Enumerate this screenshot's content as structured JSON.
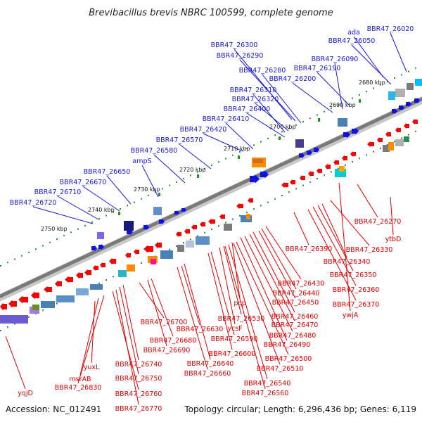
{
  "title": "Brevibacillus brevis NBRC 100599, complete genome",
  "footer": {
    "accession": "Accession: NC_012491",
    "summary": "Topology: circular; Length: 6,296,436 bp; Genes: 6,119"
  },
  "colors": {
    "top_label": "#1a1ad6",
    "bottom_label": "#e00000",
    "forward_gene": "#1010e0",
    "reverse_gene": "#ff0000",
    "backbone": "#7a7a7a",
    "tick": "#2e8b2e"
  },
  "ticks": [
    "2680 kbp",
    "2690 kbp",
    "2700 kbp",
    "2710 kbp",
    "2720 kbp",
    "2730 kbp",
    "2740 kbp",
    "2750 kbp"
  ],
  "top_labels": [
    "ada",
    "BBR47_26020",
    "BBR47_26050",
    "BBR47_26090",
    "BBR47_26300",
    "BBR47_26290",
    "BBR47_26280",
    "BBR47_26190",
    "BBR47_26200",
    "BBR47_26310",
    "BBR47_26320",
    "BBR47_26400",
    "BBR47_26410",
    "BBR47_26420",
    "BBR47_26570",
    "BBR47_26580",
    "ampS",
    "BBR47_26650",
    "BBR47_26670",
    "BBR47_26710",
    "BBR47_26720"
  ],
  "bottom_labels": [
    "BBR47_26270",
    "ytbD",
    "BBR47_26390",
    "BBR47_26330",
    "BBR47_26340",
    "BBR47_26350",
    "BBR47_26360",
    "BBR47_26370",
    "ywjA",
    "BBR47_26430",
    "BBR47_26440",
    "BBR47_26450",
    "pcp",
    "BBR47_26460",
    "BBR47_26470",
    "BBR47_26480",
    "BBR47_26490",
    "BBR47_26530",
    "ycsF",
    "BBR47_26700",
    "BBR47_26630",
    "BBR47_26590",
    "BBR47_26500",
    "BBR47_26510",
    "BBR47_26680",
    "BBR47_26690",
    "BBR47_26600",
    "BBR47_26640",
    "BBR47_26660",
    "BBR47_26540",
    "BBR47_26560",
    "yuxL",
    "BBR47_26740",
    "BBR47_26750",
    "msrAB",
    "BBR47_26830",
    "BBR47_26760",
    "BBR47_26770",
    "yqjD"
  ]
}
